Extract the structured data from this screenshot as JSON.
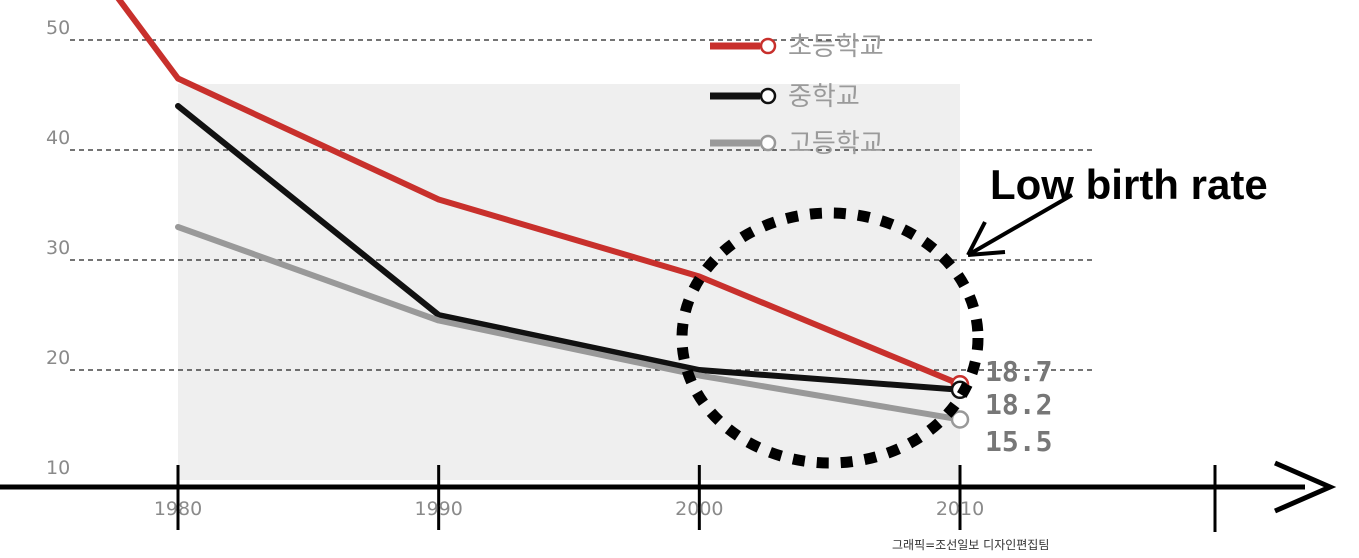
{
  "chart_data": {
    "type": "line",
    "x": [
      1980,
      1990,
      2000,
      2010
    ],
    "ylim": [
      10,
      50
    ],
    "y_ticks": [
      10,
      20,
      30,
      40,
      50
    ],
    "x_ticks": [
      1980,
      1990,
      2000,
      2010
    ],
    "grid": true,
    "legend_position": "top-right",
    "series": [
      {
        "name": "초등학교",
        "color": "#c8302c",
        "values": [
          46.5,
          35.5,
          28.5,
          18.7
        ]
      },
      {
        "name": "중학교",
        "color": "#111111",
        "values": [
          44.0,
          25.0,
          20.0,
          18.2
        ]
      },
      {
        "name": "고등학교",
        "color": "#999999",
        "values": [
          33.0,
          24.5,
          19.5,
          15.5
        ]
      }
    ],
    "end_labels": [
      "18.7",
      "18.2",
      "15.5"
    ],
    "annotation": "Low birth rate",
    "credit": "그래픽=조선일보 디자인편집팀"
  }
}
